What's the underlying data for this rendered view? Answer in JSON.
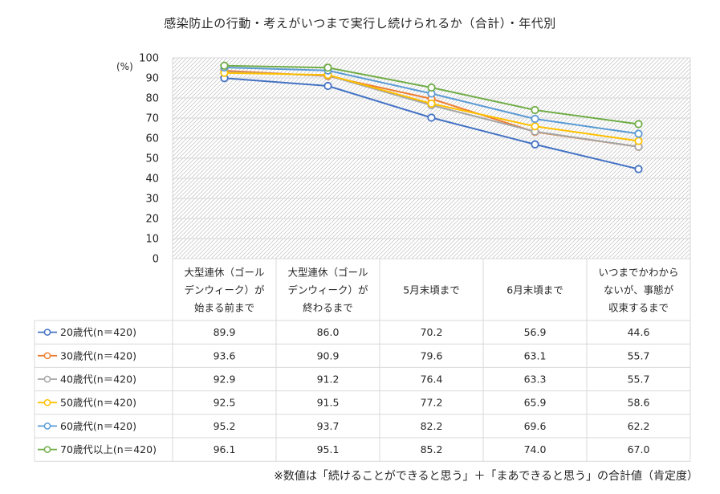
{
  "chart_data": {
    "type": "line",
    "title": "感染防止の行動・考えがいつまで実行し続けられるか（合計）・年代別",
    "ylabel": "(%)",
    "ylim": [
      0,
      100
    ],
    "yticks": [
      0,
      10,
      20,
      30,
      40,
      50,
      60,
      70,
      80,
      90,
      100
    ],
    "grid": true,
    "legend": "data-table-left",
    "categories": [
      [
        "大型連休（ゴール",
        "デンウィーク）が",
        "始まる前まで"
      ],
      [
        "大型連休（ゴール",
        "デンウィーク）が",
        "終わるまで"
      ],
      [
        "5月末頃まで"
      ],
      [
        "6月末頃まで"
      ],
      [
        "いつまでかわから",
        "ないが、事態が",
        "収束するまで"
      ]
    ],
    "series": [
      {
        "name": "20歳代(n＝420)",
        "color": "#4472C4",
        "values": [
          89.9,
          86.0,
          70.2,
          56.9,
          44.6
        ],
        "labels": [
          "89.9",
          "86.0",
          "70.2",
          "56.9",
          "44.6"
        ]
      },
      {
        "name": "30歳代(n＝420)",
        "color": "#ED7D31",
        "values": [
          93.6,
          90.9,
          79.6,
          63.1,
          55.7
        ],
        "labels": [
          "93.6",
          "90.9",
          "79.6",
          "63.1",
          "55.7"
        ]
      },
      {
        "name": "40歳代(n＝420)",
        "color": "#A5A5A5",
        "values": [
          92.9,
          91.2,
          76.4,
          63.3,
          55.7
        ],
        "labels": [
          "92.9",
          "91.2",
          "76.4",
          "63.3",
          "55.7"
        ]
      },
      {
        "name": "50歳代(n＝420)",
        "color": "#FFC000",
        "values": [
          92.5,
          91.5,
          77.2,
          65.9,
          58.6
        ],
        "labels": [
          "92.5",
          "91.5",
          "77.2",
          "65.9",
          "58.6"
        ]
      },
      {
        "name": "60歳代(n＝420)",
        "color": "#5B9BD5",
        "values": [
          95.2,
          93.7,
          82.2,
          69.6,
          62.2
        ],
        "labels": [
          "95.2",
          "93.7",
          "82.2",
          "69.6",
          "62.2"
        ]
      },
      {
        "name": "70歳代以上(n＝420)",
        "color": "#70AD47",
        "values": [
          96.1,
          95.1,
          85.2,
          74.0,
          67.0
        ],
        "labels": [
          "96.1",
          "95.1",
          "85.2",
          "74.0",
          "67.0"
        ]
      }
    ]
  },
  "footnote": "※数値は「続けることができると思う」＋「まあできると思う」の合計値（肯定度）"
}
